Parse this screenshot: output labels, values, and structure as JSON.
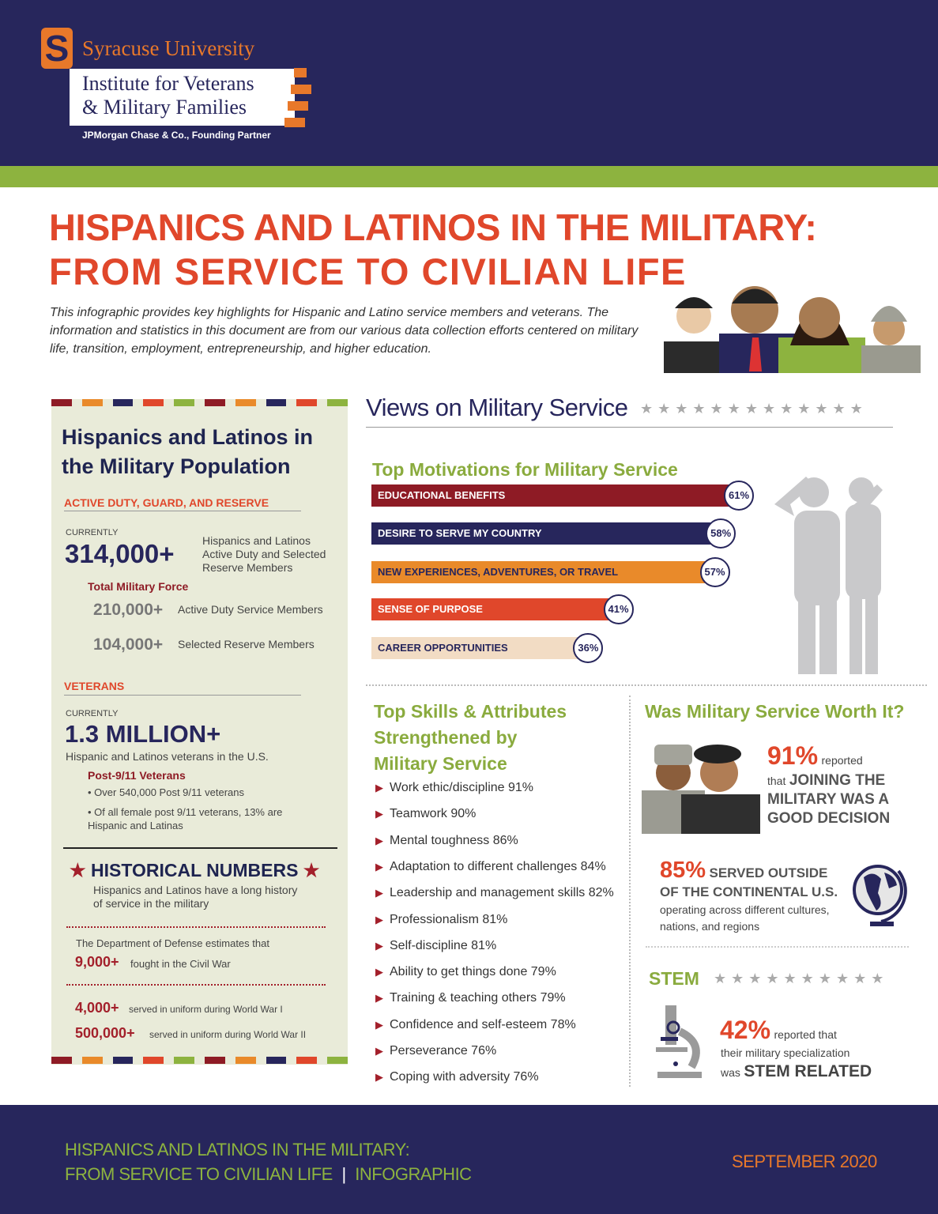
{
  "header": {
    "university": "Syracuse University",
    "logo_letter": "S",
    "institute_line1": "Institute for Veterans",
    "institute_line2": "& Military Families",
    "partner": "JPMorgan Chase & Co., Founding Partner"
  },
  "title": {
    "line1": "HISPANICS AND LATINOS IN THE MILITARY:",
    "line2": "FROM SERVICE TO CIVILIAN LIFE",
    "intro": "This infographic provides key highlights for Hispanic and Latino service members and veterans. The information and statistics in this document are from our various data collection efforts centered on military life, transition, employment, entrepreneurship, and higher education."
  },
  "colors": {
    "navy": "#27265c",
    "green": "#8db33f",
    "red": "#e0472b",
    "dark_red": "#8e1b25",
    "orange": "#e98a2a",
    "beige": "#f2dcc4",
    "panel": "#e9ebd9"
  },
  "population": {
    "heading": "Hispanics and Latinos in the Military Population",
    "active": {
      "label": "ACTIVE DUTY, GUARD, AND RESERVE",
      "currently": "CURRENTLY",
      "number": "314,000+",
      "desc": "Hispanics and Latinos Active Duty and Selected Reserve Members",
      "total_label": "Total Military Force",
      "active_num": "210,000+",
      "active_desc": "Active Duty Service Members",
      "reserve_num": "104,000+",
      "reserve_desc": "Selected Reserve Members"
    },
    "veterans": {
      "label": "VETERANS",
      "currently": "CURRENTLY",
      "number": "1.3 MILLION+",
      "desc": "Hispanic and Latinos veterans in the U.S.",
      "post911_label": "Post-9/11 Veterans",
      "bullet1": "• Over 540,000 Post 9/11 veterans",
      "bullet2": "• Of all female post 9/11 veterans, 13% are Hispanic and Latinas"
    },
    "historical": {
      "heading": "HISTORICAL NUMBERS",
      "star": "★",
      "desc": "Hispanics and Latinos have a long history of service in the military",
      "dod": "The Department of Defense estimates that",
      "civil_num": "9,000+",
      "civil_desc": "fought in the Civil War",
      "ww1_num": "4,000+",
      "ww1_desc": "served in uniform during World War I",
      "ww2_num": "500,000+",
      "ww2_desc": "served in uniform during World War II"
    }
  },
  "views": {
    "heading": "Views on Military Service",
    "stars": "★★★★★★★★★★★★★"
  },
  "chart_data": {
    "type": "bar",
    "orientation": "horizontal",
    "title": "Top Motivations for Military Service",
    "categories": [
      "EDUCATIONAL BENEFITS",
      "DESIRE TO SERVE MY COUNTRY",
      "NEW EXPERIENCES, ADVENTURES, OR TRAVEL",
      "SENSE OF PURPOSE",
      "CAREER OPPORTUNITIES"
    ],
    "values": [
      61,
      58,
      57,
      41,
      36
    ],
    "labels": [
      "61%",
      "58%",
      "57%",
      "41%",
      "36%"
    ],
    "bar_colors": [
      "#8e1b25",
      "#27265c",
      "#e98a2a",
      "#e0472b",
      "#f2dcc4"
    ],
    "text_colors": [
      "#ffffff",
      "#ffffff",
      "#27265c",
      "#ffffff",
      "#27265c"
    ],
    "xlim": [
      0,
      61
    ],
    "grid": false
  },
  "skills": {
    "heading_line1": "Top Skills & Attributes",
    "heading_line2": "Strengthened by",
    "heading_line3": "Military Service",
    "items": [
      "Work ethic/discipline 91%",
      "Teamwork 90%",
      "Mental toughness 86%",
      "Adaptation to different challenges  84%",
      "Leadership and management skills  82%",
      "Professionalism  81%",
      "Self-discipline  81%",
      "Ability to get things done  79%",
      "Training & teaching others  79%",
      "Confidence and self-esteem  78%",
      "Perseverance  76%",
      "Coping with adversity  76%"
    ]
  },
  "worth": {
    "heading": "Was Military Service Worth It?",
    "pct1": "91%",
    "reported": "reported",
    "that": "that",
    "decision": "JOINING THE MILITARY WAS A GOOD DECISION",
    "pct2": "85%",
    "outside1": "SERVED OUTSIDE",
    "outside2": "OF THE CONTINENTAL U.S.",
    "outside_desc": "operating across different cultures, nations, and regions"
  },
  "stem": {
    "heading": "STEM",
    "stars": "★★★★★★★★★★",
    "pct": "42%",
    "text1": "reported that",
    "text2": "their military specialization",
    "was": "was",
    "related": "STEM RELATED"
  },
  "footer": {
    "line1": "HISPANICS AND LATINOS IN THE MILITARY:",
    "line2": "FROM SERVICE TO CIVILIAN LIFE",
    "separator": "|",
    "type": "INFOGRAPHIC",
    "date": "SEPTEMBER 2020"
  }
}
